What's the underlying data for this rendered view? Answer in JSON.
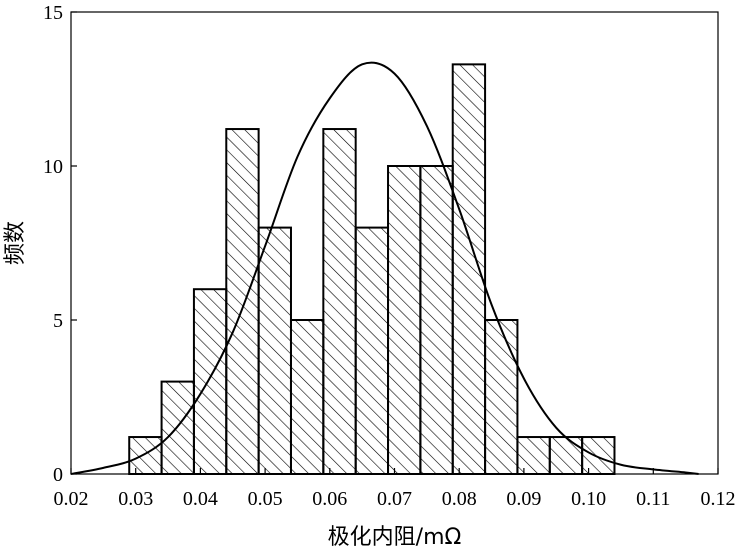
{
  "chart_data": {
    "type": "bar",
    "xlabel": "极化内阻/mΩ",
    "ylabel": "频数",
    "xlim": [
      0.02,
      0.12
    ],
    "ylim": [
      0,
      15
    ],
    "x_ticks": [
      "0.02",
      "0.03",
      "0.04",
      "0.05",
      "0.06",
      "0.07",
      "0.08",
      "0.09",
      "0.10",
      "0.11",
      "0.12"
    ],
    "y_ticks": [
      "0",
      "5",
      "10",
      "15"
    ],
    "bins": [
      {
        "start": 0.029,
        "end": 0.034,
        "count": 1.2
      },
      {
        "start": 0.034,
        "end": 0.039,
        "count": 3
      },
      {
        "start": 0.039,
        "end": 0.044,
        "count": 6
      },
      {
        "start": 0.044,
        "end": 0.049,
        "count": 11.2
      },
      {
        "start": 0.049,
        "end": 0.054,
        "count": 8
      },
      {
        "start": 0.054,
        "end": 0.059,
        "count": 5
      },
      {
        "start": 0.059,
        "end": 0.064,
        "count": 11.2
      },
      {
        "start": 0.064,
        "end": 0.069,
        "count": 8
      },
      {
        "start": 0.069,
        "end": 0.074,
        "count": 10
      },
      {
        "start": 0.074,
        "end": 0.079,
        "count": 10
      },
      {
        "start": 0.079,
        "end": 0.084,
        "count": 13.3
      },
      {
        "start": 0.084,
        "end": 0.089,
        "count": 5
      },
      {
        "start": 0.089,
        "end": 0.094,
        "count": 1.2
      },
      {
        "start": 0.094,
        "end": 0.099,
        "count": 1.2
      },
      {
        "start": 0.099,
        "end": 0.104,
        "count": 1.2
      }
    ],
    "fit_curve": {
      "x": [
        0.02,
        0.025,
        0.03,
        0.035,
        0.04,
        0.045,
        0.05,
        0.055,
        0.06,
        0.065,
        0.07,
        0.075,
        0.08,
        0.085,
        0.09,
        0.095,
        0.1,
        0.105,
        0.11,
        0.115,
        0.117
      ],
      "y": [
        0,
        0.2,
        0.5,
        1.2,
        2.6,
        4.6,
        7.4,
        10.3,
        12.2,
        13.3,
        13.0,
        11.3,
        8.6,
        5.5,
        3.1,
        1.5,
        0.7,
        0.3,
        0.15,
        0.05,
        0
      ]
    },
    "grid": false,
    "bar_pattern": "diagonal-hatch"
  }
}
